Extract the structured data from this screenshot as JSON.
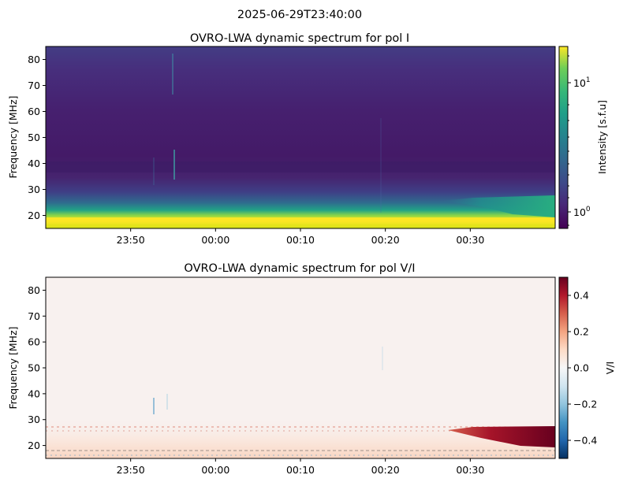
{
  "figure": {
    "suptitle": "2025-06-29T23:40:00"
  },
  "chart_data": [
    {
      "type": "heatmap",
      "title": "OVRO-LWA dynamic spectrum for pol I",
      "xlabel": "",
      "ylabel": "Frequency [MHz]",
      "x_ticks": [
        "23:50",
        "00:00",
        "00:10",
        "00:20",
        "00:30"
      ],
      "x_range": [
        "23:40",
        "00:40"
      ],
      "y_ticks": [
        20,
        30,
        40,
        50,
        60,
        70,
        80
      ],
      "ylim": [
        15,
        85
      ],
      "colormap": "viridis",
      "color_scale": "log",
      "colorbar": {
        "label": "Intensity [s.f.u]",
        "ticks": [
          {
            "base": "10",
            "exp": "1",
            "value": 10
          },
          {
            "base": "10",
            "exp": "0",
            "value": 1
          }
        ],
        "range": [
          0.75,
          20
        ]
      },
      "features": [
        {
          "desc": "bright low-frequency band",
          "freq_range_MHz": [
            15,
            20
          ],
          "intensity_sfu": 20
        },
        {
          "desc": "emission tail near end",
          "time_range": [
            "00:29",
            "00:40"
          ],
          "freq_range_MHz": [
            20,
            27
          ],
          "intensity_sfu": 6
        },
        {
          "desc": "background",
          "intensity_sfu": 1
        }
      ]
    },
    {
      "type": "heatmap",
      "title": "OVRO-LWA dynamic spectrum for pol V/I",
      "xlabel": "",
      "ylabel": "Frequency [MHz]",
      "x_ticks": [
        "23:50",
        "00:00",
        "00:10",
        "00:20",
        "00:30"
      ],
      "x_range": [
        "23:40",
        "00:40"
      ],
      "y_ticks": [
        20,
        30,
        40,
        50,
        60,
        70,
        80
      ],
      "ylim": [
        15,
        85
      ],
      "colormap": "RdBu_r",
      "color_scale": "linear",
      "colorbar": {
        "label": "V/I",
        "ticks": [
          "0.4",
          "0.2",
          "0.0",
          "−0.2",
          "−0.4"
        ],
        "range": [
          -0.5,
          0.5
        ]
      },
      "features": [
        {
          "desc": "strongly polarized feature",
          "time_range": [
            "00:29",
            "00:40"
          ],
          "freq_range_MHz": [
            20,
            27
          ],
          "value": 0.45
        },
        {
          "desc": "weak positive low band",
          "freq_range_MHz": [
            15,
            22
          ],
          "value": 0.1
        },
        {
          "desc": "background",
          "value": 0.02
        }
      ]
    }
  ]
}
